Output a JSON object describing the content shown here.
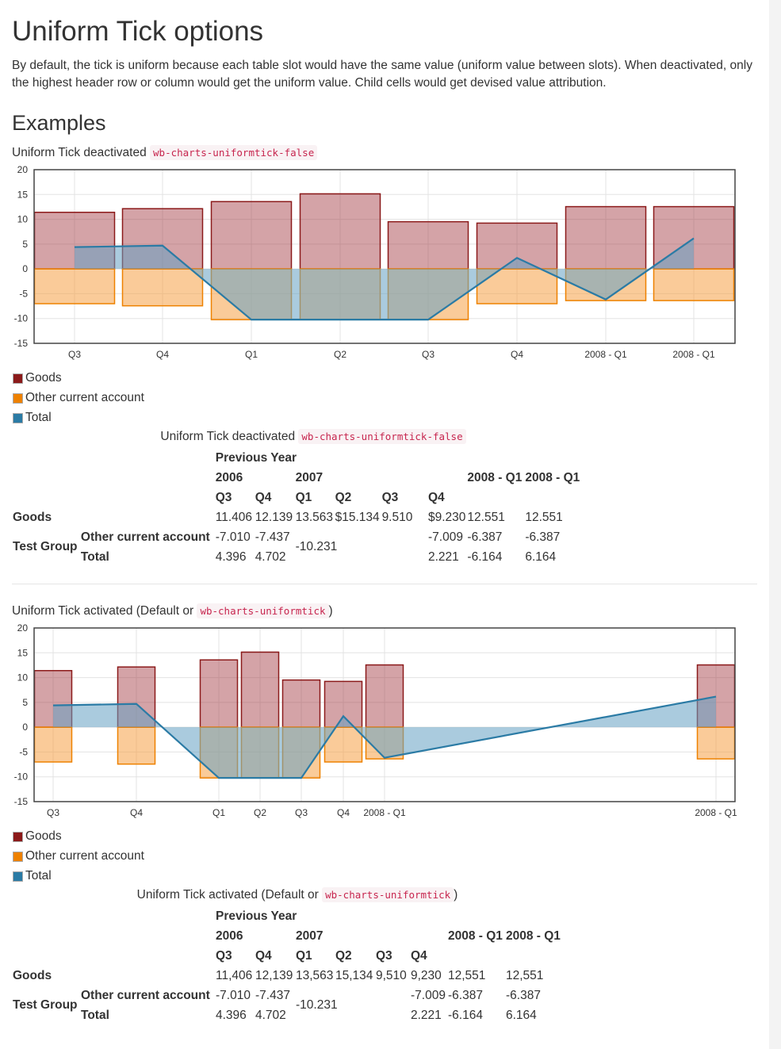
{
  "page": {
    "title": "Uniform Tick options",
    "intro": "By default, the tick is uniform because each table slot would have the same value (uniform value between slots). When deactivated, only the highest header row or column would get the uniform value. Child cells would get devised value attribution.",
    "examples_heading": "Examples"
  },
  "colors": {
    "goods": "#8b1a1a",
    "other": "#ee8100",
    "total": "#2b7ba5",
    "goods_fill": "rgba(160,50,60,0.45)",
    "other_fill": "rgba(245,160,70,0.55)",
    "total_fill": "rgba(100,160,195,0.55)"
  },
  "legend": [
    {
      "label": "Goods",
      "color": "#8b1a1a"
    },
    {
      "label": "Other current account",
      "color": "#ee8100"
    },
    {
      "label": "Total",
      "color": "#2b7ba5"
    }
  ],
  "example1": {
    "caption_text": "Uniform Tick deactivated",
    "caption_code": "wb-charts-uniformtick-false",
    "table": {
      "header_row1": "Previous Year",
      "year_2006": "2006",
      "year_2007": "2007",
      "col_2008a": "2008 - Q1",
      "col_2008b": "2008 - Q1",
      "quarters": [
        "Q3",
        "Q4",
        "Q1",
        "Q2",
        "Q3",
        "Q4"
      ],
      "goods_label": "Goods",
      "goods_values": [
        "11.406",
        "12.139",
        "13.563",
        "$15.134",
        "9.510",
        "$9.230",
        "12.551",
        "12.551"
      ],
      "group_label": "Test Group",
      "other_label": "Other current account",
      "other_values": [
        "-7.010",
        "-7.437",
        "-7.009",
        "-6.387",
        "-6.387"
      ],
      "merged_value": "-10.231",
      "total_label": "Total",
      "total_values": [
        "4.396",
        "4.702",
        "2.221",
        "-6.164",
        "6.164"
      ]
    }
  },
  "example2": {
    "caption_text": "Uniform Tick activated (Default or",
    "caption_code": "wb-charts-uniformtick",
    "caption_suffix": ")",
    "table": {
      "header_row1": "Previous Year",
      "year_2006": "2006",
      "year_2007": "2007",
      "col_2008a": "2008 - Q1",
      "col_2008b": "2008 - Q1",
      "quarters": [
        "Q3",
        "Q4",
        "Q1",
        "Q2",
        "Q3",
        "Q4"
      ],
      "goods_label": "Goods",
      "goods_values": [
        "11,406",
        "12,139",
        "13,563",
        "15,134",
        "9,510",
        "9,230",
        "12,551",
        "12,551"
      ],
      "group_label": "Test Group",
      "other_label": "Other current account",
      "other_values": [
        "-7.010",
        "-7.437",
        "-7.009",
        "-6.387",
        "-6.387"
      ],
      "merged_value": "-10.231",
      "total_label": "Total",
      "total_values": [
        "4.396",
        "4.702",
        "2.221",
        "-6.164",
        "6.164"
      ]
    }
  },
  "chart_data": [
    {
      "type": "bar",
      "title": "Uniform Tick deactivated",
      "uniform_tick": false,
      "categories": [
        "Q3",
        "Q4",
        "Q1",
        "Q2",
        "Q3",
        "Q4",
        "2008 - Q1",
        "2008 - Q1"
      ],
      "series": [
        {
          "name": "Goods",
          "type": "bar",
          "values": [
            11.406,
            12.139,
            13.563,
            15.134,
            9.51,
            9.23,
            12.551,
            12.551
          ]
        },
        {
          "name": "Other current account",
          "type": "bar",
          "values": [
            -7.01,
            -7.437,
            -10.231,
            -10.231,
            -10.231,
            -7.009,
            -6.387,
            -6.387
          ]
        },
        {
          "name": "Total",
          "type": "area",
          "values": [
            4.396,
            4.702,
            -10.231,
            -10.231,
            -10.231,
            2.221,
            -6.164,
            6.164
          ]
        }
      ],
      "ylim": [
        -15,
        20
      ],
      "yticks": [
        20,
        15,
        10,
        5,
        0,
        -5,
        -10,
        -15
      ],
      "grid": true,
      "legend_position": "bottom"
    },
    {
      "type": "bar",
      "title": "Uniform Tick activated (Default or wb-charts-uniformtick)",
      "uniform_tick": true,
      "categories": [
        "Q3",
        "Q4",
        "Q1",
        "Q2",
        "Q3",
        "Q4",
        "2008 - Q1",
        "2008 - Q1"
      ],
      "series": [
        {
          "name": "Goods",
          "type": "bar",
          "values": [
            11.406,
            12.139,
            13.563,
            15.134,
            9.51,
            9.23,
            12.551,
            12.551
          ]
        },
        {
          "name": "Other current account",
          "type": "bar",
          "values": [
            -7.01,
            -7.437,
            -10.231,
            -10.231,
            -10.231,
            -7.009,
            -6.387,
            -6.387
          ]
        },
        {
          "name": "Total",
          "type": "area",
          "values": [
            4.396,
            4.702,
            -10.231,
            -10.231,
            -10.231,
            2.221,
            -6.164,
            6.164
          ]
        }
      ],
      "ylim": [
        -15,
        20
      ],
      "yticks": [
        20,
        15,
        10,
        5,
        0,
        -5,
        -10,
        -15
      ],
      "grid": true,
      "legend_position": "bottom"
    }
  ]
}
